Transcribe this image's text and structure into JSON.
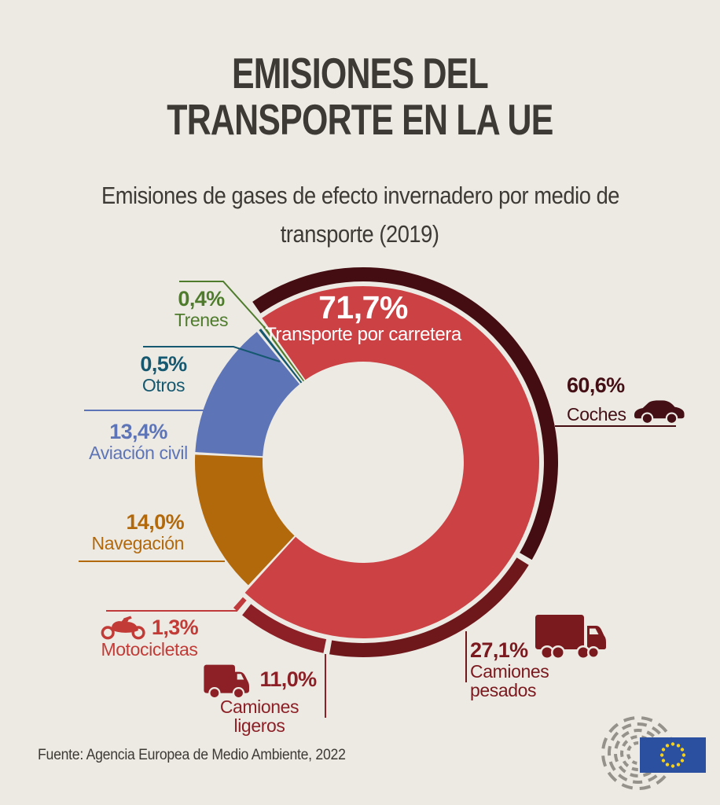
{
  "header": {
    "title_line1": "EMISIONES DEL",
    "title_line2": "TRANSPORTE EN LA UE",
    "subtitle_line1": "Emisiones de gases de efecto invernadero por medio de",
    "subtitle_line2": "transporte (2019)"
  },
  "footer": {
    "source": "Fuente: Agencia Europea de Medio Ambiente, 2022"
  },
  "colors": {
    "background": "#edeae4",
    "text_dark": "#3d3935",
    "white": "#ffffff",
    "logo_gray": "#95918b",
    "flag_blue": "#2c50a0",
    "star_yellow": "#f7d117"
  },
  "chart_data": {
    "type": "pie",
    "title": "Emisiones de gases de efecto invernadero por medio de transporte (2019)",
    "unit": "%",
    "donut": true,
    "start_angle_deg": -35.5,
    "legend_position": "callout labels with leader lines",
    "segments": [
      {
        "id": "road",
        "label": "Transporte por carretera",
        "value": 71.7,
        "value_label": "71,7%",
        "color": "#cb4144"
      },
      {
        "id": "shipping",
        "label": "Navegación",
        "value": 14.0,
        "value_label": "14,0%",
        "color": "#b2690c"
      },
      {
        "id": "aviation",
        "label": "Aviación civil",
        "value": 13.4,
        "value_label": "13,4%",
        "color": "#5d74b7"
      },
      {
        "id": "other",
        "label": "Otros",
        "value": 0.5,
        "value_label": "0,5%",
        "color": "#15586f"
      },
      {
        "id": "rail",
        "label": "Trenes",
        "value": 0.4,
        "value_label": "0,4%",
        "color": "#4e7c2c"
      }
    ],
    "road_breakdown": [
      {
        "id": "cars",
        "label": "Coches",
        "value": 60.6,
        "value_label": "60,6%",
        "color": "#430d11",
        "text_color": "#441016",
        "icon": "car-icon"
      },
      {
        "id": "heavy_trucks",
        "label": "Camiones pesados",
        "value": 27.1,
        "value_label": "27,1%",
        "color": "#6f181c",
        "text_color": "#7a191e",
        "icon": "truck-icon"
      },
      {
        "id": "light_trucks",
        "label": "Camiones ligeros",
        "value": 11.0,
        "value_label": "11,0%",
        "color": "#8c2026",
        "text_color": "#8c2026",
        "icon": "van-icon"
      },
      {
        "id": "motorcycles",
        "label": "Motocicletas",
        "value": 1.3,
        "value_label": "1,3%",
        "color": "#c0393b",
        "text_color": "#c23b36",
        "icon": "motorcycle-icon"
      }
    ]
  },
  "logo": {
    "name": "european-parliament-logo"
  }
}
